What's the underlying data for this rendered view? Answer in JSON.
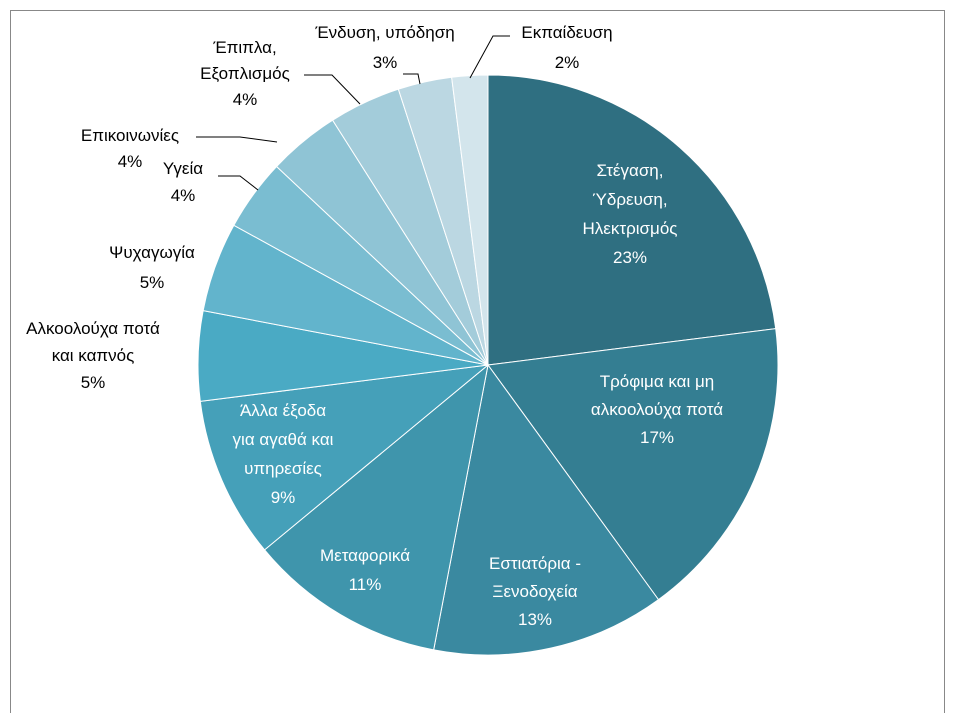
{
  "chart_data": {
    "type": "pie",
    "categories": [
      [
        "Στέγαση,",
        "Ύδρευση,",
        "Ηλεκτρισμός"
      ],
      [
        "Τρόφιμα και μη",
        "αλκοολούχα ποτά"
      ],
      [
        "Εστιατόρια -",
        "Ξενοδοχεία"
      ],
      [
        "Μεταφορικά"
      ],
      [
        "Άλλα έξοδα",
        "για αγαθά και",
        "υπηρεσίες"
      ],
      [
        "Αλκοολούχα ποτά",
        "και καπνός"
      ],
      [
        "Ψυχαγωγία"
      ],
      [
        "Υγεία"
      ],
      [
        "Επικοινωνίες"
      ],
      [
        "Έπιπλα,",
        "Εξοπλισμός"
      ],
      [
        "Ένδυση, υπόδηση"
      ],
      [
        "Εκπαίδευση"
      ]
    ],
    "values": [
      23,
      17,
      13,
      11,
      9,
      5,
      5,
      4,
      4,
      4,
      3,
      2
    ],
    "value_labels": [
      "23%",
      "17%",
      "13%",
      "11%",
      "9%",
      "5%",
      "5%",
      "4%",
      "4%",
      "4%",
      "3%",
      "2%"
    ],
    "colors": [
      "#2f6f81",
      "#347e92",
      "#3a89a0",
      "#3f95ac",
      "#45a0b9",
      "#4aaac4",
      "#62b4cc",
      "#7abdd1",
      "#8fc4d5",
      "#a3ccda",
      "#bbd7e2",
      "#d3e5ec"
    ]
  }
}
